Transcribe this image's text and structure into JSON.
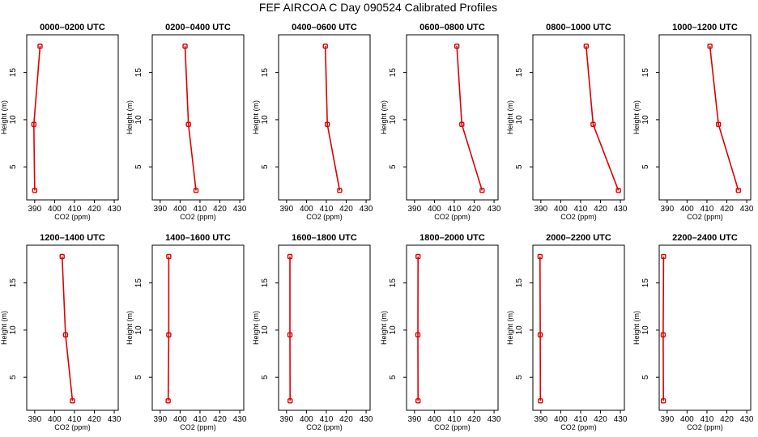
{
  "figure": {
    "title": "FEF  AIRCOA C  Day 090524  Calibrated Profiles",
    "series_color": "#dd0000"
  },
  "chart_data": [
    {
      "type": "line",
      "title": "0000–0200 UTC",
      "xlabel": "CO2 (ppm)",
      "ylabel": "Height (m)",
      "xlim": [
        386,
        432
      ],
      "ylim": [
        1.5,
        19
      ],
      "x_ticks": [
        390,
        400,
        410,
        420,
        430
      ],
      "y_ticks": [
        5,
        10,
        15
      ],
      "x": [
        390.0,
        389.6,
        392.7
      ],
      "y": [
        2.5,
        9.5,
        17.8
      ]
    },
    {
      "type": "line",
      "title": "0200–0400 UTC",
      "xlabel": "CO2 (ppm)",
      "ylabel": "Height (m)",
      "xlim": [
        386,
        432
      ],
      "ylim": [
        1.5,
        19
      ],
      "x_ticks": [
        390,
        400,
        410,
        420,
        430
      ],
      "y_ticks": [
        5,
        10,
        15
      ],
      "x": [
        402.5,
        404.2,
        408.0
      ],
      "y": [
        17.8,
        9.5,
        2.5
      ]
    },
    {
      "type": "line",
      "title": "0400–0600 UTC",
      "xlabel": "CO2 (ppm)",
      "ylabel": "Height (m)",
      "xlim": [
        386,
        432
      ],
      "ylim": [
        1.5,
        19
      ],
      "x_ticks": [
        390,
        400,
        410,
        420,
        430
      ],
      "y_ticks": [
        5,
        10,
        15
      ],
      "x": [
        409.5,
        410.5,
        416.7
      ],
      "y": [
        17.8,
        9.5,
        2.5
      ]
    },
    {
      "type": "line",
      "title": "0600–0800 UTC",
      "xlabel": "CO2 (ppm)",
      "ylabel": "Height (m)",
      "xlim": [
        386,
        432
      ],
      "ylim": [
        1.5,
        19
      ],
      "x_ticks": [
        390,
        400,
        410,
        420,
        430
      ],
      "y_ticks": [
        5,
        10,
        15
      ],
      "x": [
        411.3,
        413.8,
        424.0
      ],
      "y": [
        17.8,
        9.5,
        2.5
      ]
    },
    {
      "type": "line",
      "title": "0800–1000 UTC",
      "xlabel": "CO2 (ppm)",
      "ylabel": "Height (m)",
      "xlim": [
        386,
        432
      ],
      "ylim": [
        1.5,
        19
      ],
      "x_ticks": [
        390,
        400,
        410,
        420,
        430
      ],
      "y_ticks": [
        5,
        10,
        15
      ],
      "x": [
        412.8,
        416.3,
        429.0
      ],
      "y": [
        17.8,
        9.5,
        2.5
      ]
    },
    {
      "type": "line",
      "title": "1000–1200 UTC",
      "xlabel": "CO2 (ppm)",
      "ylabel": "Height (m)",
      "xlim": [
        386,
        432
      ],
      "ylim": [
        1.5,
        19
      ],
      "x_ticks": [
        390,
        400,
        410,
        420,
        430
      ],
      "y_ticks": [
        5,
        10,
        15
      ],
      "x": [
        411.5,
        415.8,
        425.8
      ],
      "y": [
        17.8,
        9.5,
        2.5
      ]
    },
    {
      "type": "line",
      "title": "1200–1400 UTC",
      "xlabel": "CO2 (ppm)",
      "ylabel": "Height (m)",
      "xlim": [
        386,
        432
      ],
      "ylim": [
        1.5,
        19
      ],
      "x_ticks": [
        390,
        400,
        410,
        420,
        430
      ],
      "y_ticks": [
        5,
        10,
        15
      ],
      "x": [
        403.8,
        405.5,
        409.0
      ],
      "y": [
        17.8,
        9.5,
        2.5
      ]
    },
    {
      "type": "line",
      "title": "1400–1600 UTC",
      "xlabel": "CO2 (ppm)",
      "ylabel": "Height (m)",
      "xlim": [
        386,
        432
      ],
      "ylim": [
        1.5,
        19
      ],
      "x_ticks": [
        390,
        400,
        410,
        420,
        430
      ],
      "y_ticks": [
        5,
        10,
        15
      ],
      "x": [
        394.3,
        394.3,
        394.0
      ],
      "y": [
        17.8,
        9.5,
        2.5
      ]
    },
    {
      "type": "line",
      "title": "1600–1800 UTC",
      "xlabel": "CO2 (ppm)",
      "ylabel": "Height (m)",
      "xlim": [
        386,
        432
      ],
      "ylim": [
        1.5,
        19
      ],
      "x_ticks": [
        390,
        400,
        410,
        420,
        430
      ],
      "y_ticks": [
        5,
        10,
        15
      ],
      "x": [
        391.7,
        391.7,
        391.8
      ],
      "y": [
        17.8,
        9.5,
        2.5
      ]
    },
    {
      "type": "line",
      "title": "1800–2000 UTC",
      "xlabel": "CO2 (ppm)",
      "ylabel": "Height (m)",
      "xlim": [
        386,
        432
      ],
      "ylim": [
        1.5,
        19
      ],
      "x_ticks": [
        390,
        400,
        410,
        420,
        430
      ],
      "y_ticks": [
        5,
        10,
        15
      ],
      "x": [
        391.8,
        391.7,
        391.8
      ],
      "y": [
        17.8,
        9.5,
        2.5
      ]
    },
    {
      "type": "line",
      "title": "2000–2200 UTC",
      "xlabel": "CO2 (ppm)",
      "ylabel": "Height (m)",
      "xlim": [
        386,
        432
      ],
      "ylim": [
        1.5,
        19
      ],
      "x_ticks": [
        390,
        400,
        410,
        420,
        430
      ],
      "y_ticks": [
        5,
        10,
        15
      ],
      "x": [
        389.6,
        389.7,
        389.8
      ],
      "y": [
        17.8,
        9.5,
        2.5
      ]
    },
    {
      "type": "line",
      "title": "2200–2400 UTC",
      "xlabel": "CO2 (ppm)",
      "ylabel": "Height (m)",
      "xlim": [
        386,
        432
      ],
      "ylim": [
        1.5,
        19
      ],
      "x_ticks": [
        390,
        400,
        410,
        420,
        430
      ],
      "y_ticks": [
        5,
        10,
        15
      ],
      "x": [
        388.2,
        388.0,
        388.1
      ],
      "y": [
        17.8,
        9.5,
        2.5
      ]
    }
  ]
}
